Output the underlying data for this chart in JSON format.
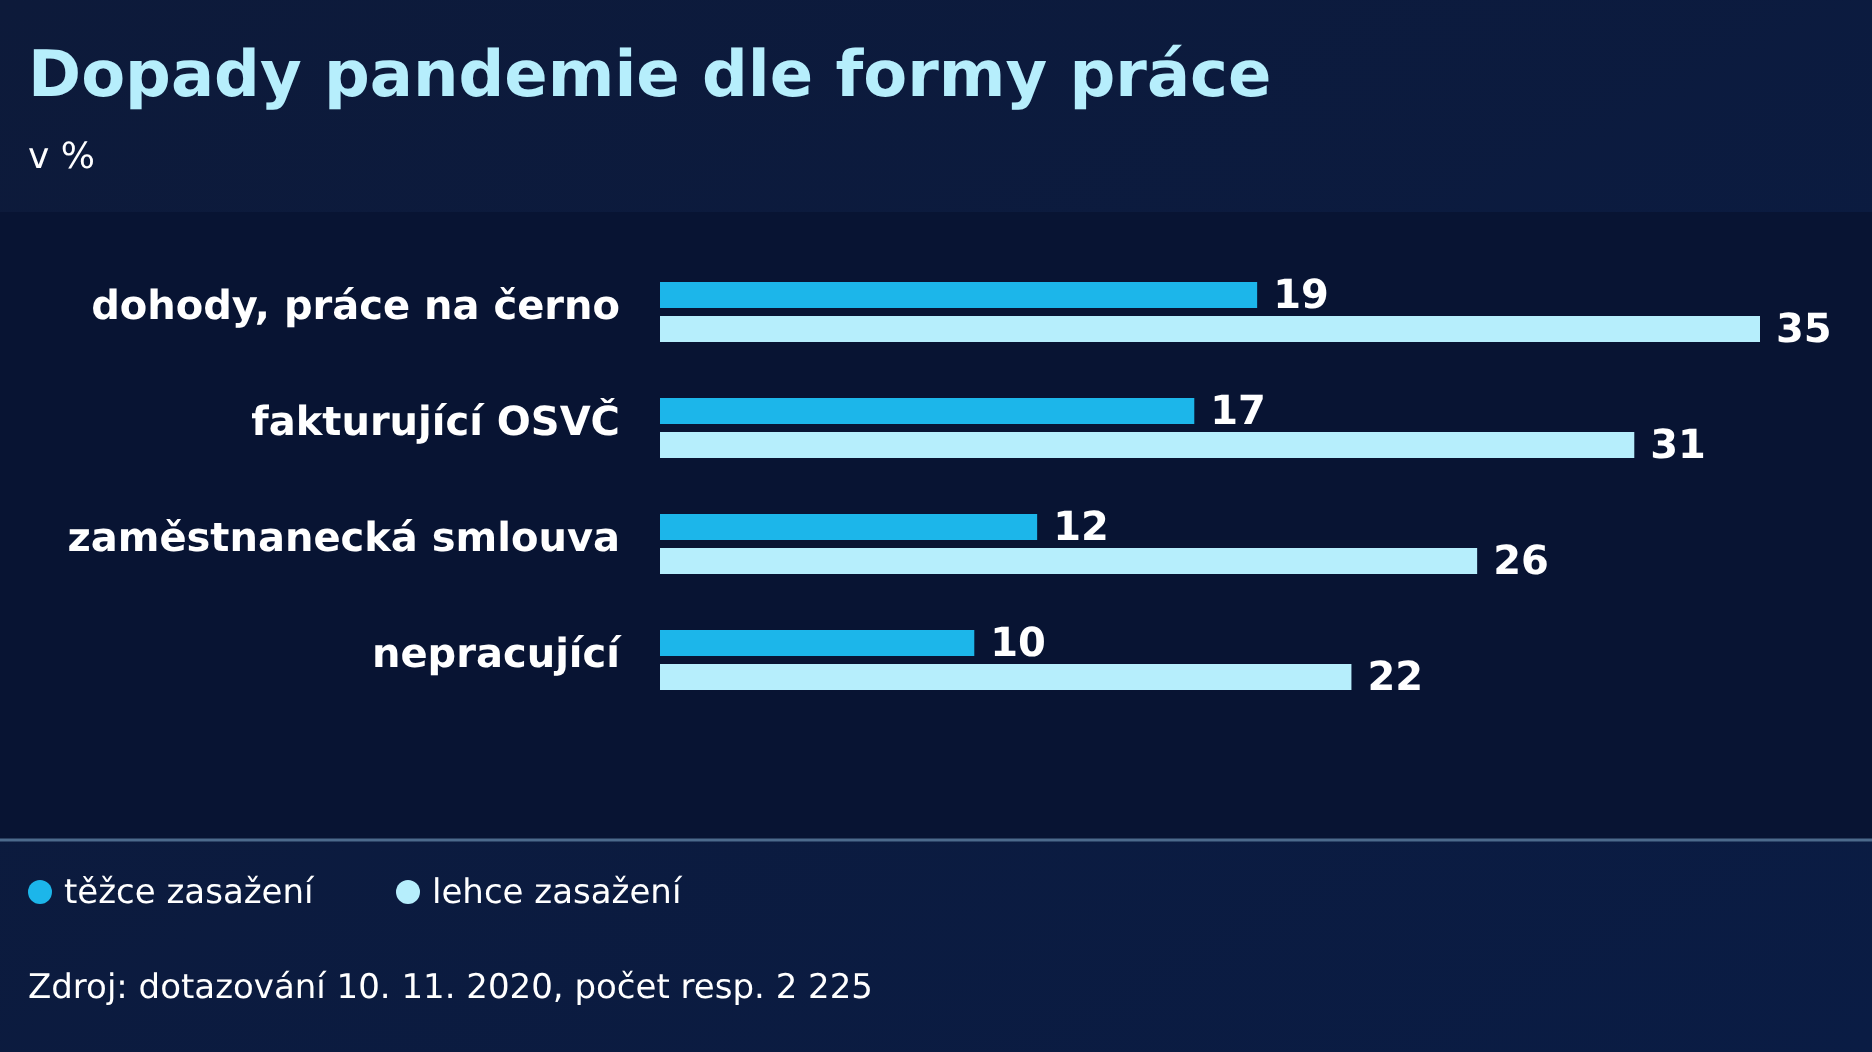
{
  "chart_data": {
    "type": "bar",
    "orientation": "horizontal",
    "title": "Dopady pandemie dle formy práce",
    "subtitle": "v %",
    "categories": [
      "dohody, práce na černo",
      "fakturující OSVČ",
      "zaměstnanecká smlouva",
      "nepracující"
    ],
    "series": [
      {
        "name": "těžce zasažení",
        "color": "#1cb6ea",
        "values": [
          19,
          17,
          12,
          10
        ]
      },
      {
        "name": "lehce zasažení",
        "color": "#b6eefc",
        "values": [
          35,
          31,
          26,
          22
        ]
      }
    ],
    "data_labels": true,
    "legend": "bottom left",
    "grid": false,
    "annotations": [
      "Zdroj: dotazování 10. 11. 2020, počet resp. 2 225"
    ]
  }
}
